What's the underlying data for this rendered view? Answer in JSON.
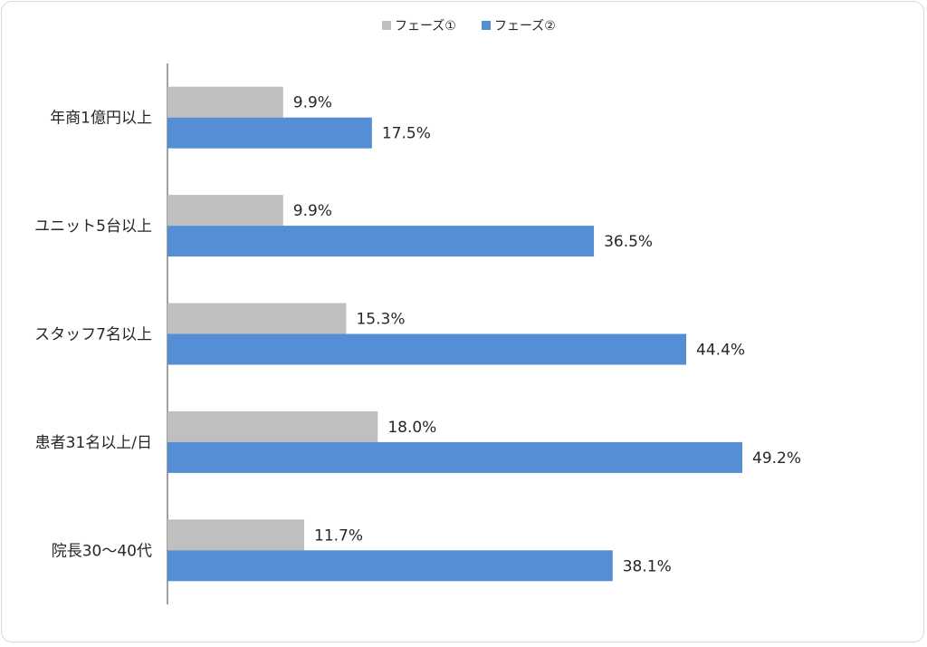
{
  "chart_data": {
    "type": "bar",
    "orientation": "horizontal",
    "categories": [
      "年商1億円以上",
      "ユニット5台以上",
      "スタッフ7名以上",
      "患者31名以上/日",
      "院長30～40代"
    ],
    "series": [
      {
        "name": "フェーズ①",
        "color": "#bfbfbf",
        "values": [
          9.9,
          9.9,
          15.3,
          18.0,
          11.7
        ],
        "labels": [
          "9.9%",
          "9.9%",
          "15.3%",
          "18.0%",
          "11.7%"
        ]
      },
      {
        "name": "フェーズ②",
        "color": "#558ed5",
        "values": [
          17.5,
          36.5,
          44.4,
          49.2,
          38.1
        ],
        "labels": [
          "17.5%",
          "36.5%",
          "44.4%",
          "49.2%",
          "38.1%"
        ]
      }
    ],
    "xlim": [
      0,
      65
    ],
    "legend_position": "top-center",
    "grid": false
  }
}
